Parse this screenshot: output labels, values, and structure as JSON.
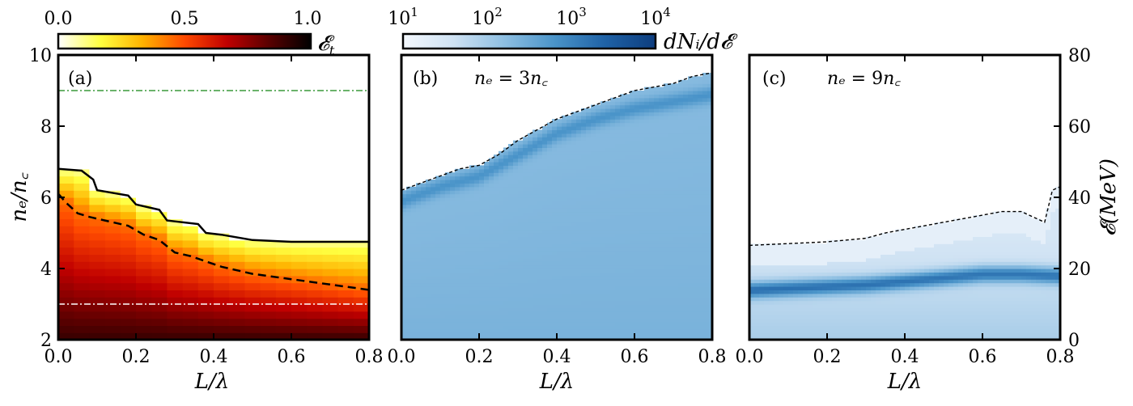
{
  "colorbars": {
    "energy_fraction": {
      "label": "𝓔",
      "label_sub": "t",
      "ticks": [
        "0.0",
        "0.5",
        "1.0"
      ],
      "range": [
        0,
        1
      ],
      "colors": [
        "#ffffff",
        "#ffff40",
        "#ffb300",
        "#ff4a00",
        "#c00000",
        "#5a0000",
        "#000000"
      ]
    },
    "ion_spectrum": {
      "label": "dNᵢ/d𝓔",
      "ticks": [
        {
          "base": "10",
          "exp": "1"
        },
        {
          "base": "10",
          "exp": "2"
        },
        {
          "base": "10",
          "exp": "3"
        },
        {
          "base": "10",
          "exp": "4"
        }
      ],
      "range": [
        10,
        10000
      ],
      "scale": "log",
      "colors": [
        "#f4f8fd",
        "#cfe2f3",
        "#8ebfe2",
        "#4a94c9",
        "#1f62a6",
        "#0d3d7e"
      ]
    }
  },
  "chart_data": [
    {
      "type": "heatmap",
      "panel": "(a)",
      "xlabel": "L/λ",
      "ylabel": "nₑ/n꜀",
      "xlim": [
        0.0,
        0.8
      ],
      "ylim": [
        2,
        10
      ],
      "x_ticks": [
        "0.0",
        "0.2",
        "0.4",
        "0.6",
        "0.8"
      ],
      "y_ticks": [
        "2",
        "4",
        "6",
        "8",
        "10"
      ],
      "color_quantity": "𝓔t",
      "series": [
        {
          "style": "solid",
          "x": [
            0.0,
            0.06,
            0.09,
            0.1,
            0.18,
            0.2,
            0.26,
            0.28,
            0.36,
            0.38,
            0.42,
            0.5,
            0.6,
            0.7,
            0.8
          ],
          "y": [
            6.8,
            6.75,
            6.5,
            6.2,
            6.05,
            5.8,
            5.65,
            5.35,
            5.25,
            5.0,
            4.95,
            4.8,
            4.75,
            4.75,
            4.75
          ]
        },
        {
          "style": "dashed",
          "x": [
            0.0,
            0.02,
            0.05,
            0.08,
            0.12,
            0.18,
            0.22,
            0.26,
            0.3,
            0.34,
            0.38,
            0.42,
            0.5,
            0.6,
            0.7,
            0.8
          ],
          "y": [
            6.1,
            5.85,
            5.55,
            5.45,
            5.35,
            5.2,
            4.95,
            4.8,
            4.45,
            4.35,
            4.2,
            4.05,
            3.85,
            3.7,
            3.55,
            3.4
          ]
        },
        {
          "style": "dash-dot-green",
          "x": [
            0.0,
            0.8
          ],
          "y": [
            9,
            9
          ]
        },
        {
          "style": "dash-dot-white",
          "x": [
            0.0,
            0.8
          ],
          "y": [
            3,
            3
          ]
        }
      ]
    },
    {
      "type": "heatmap",
      "panel": "(b)",
      "annotation": {
        "lhs": "nₑ",
        "eq": " = 3",
        "rhs": "n꜀"
      },
      "xlabel": "L/λ",
      "xlim": [
        0.0,
        0.8
      ],
      "ylim": [
        0,
        80
      ],
      "x_ticks": [
        "0.0",
        "0.2",
        "0.4",
        "0.6",
        "0.8"
      ],
      "color_quantity": "dNᵢ/d𝓔",
      "series": [
        {
          "style": "max-energy-cutoff",
          "x": [
            0.0,
            0.05,
            0.1,
            0.15,
            0.2,
            0.25,
            0.3,
            0.35,
            0.4,
            0.45,
            0.5,
            0.55,
            0.6,
            0.65,
            0.7,
            0.75,
            0.8
          ],
          "y": [
            42,
            44,
            46,
            48,
            49,
            52,
            56,
            59,
            62,
            64,
            66,
            68,
            70,
            71,
            72,
            74,
            75
          ]
        },
        {
          "style": "peak-ridge",
          "x": [
            0.0,
            0.1,
            0.2,
            0.3,
            0.4,
            0.5,
            0.6,
            0.7,
            0.8
          ],
          "y": [
            39,
            43,
            46,
            52,
            58,
            62,
            65,
            67,
            69
          ]
        }
      ]
    },
    {
      "type": "heatmap",
      "panel": "(c)",
      "annotation": {
        "lhs": "nₑ",
        "eq": " = 9",
        "rhs": "n꜀"
      },
      "xlabel": "L/λ",
      "ylabel_right": "𝓔(MeV)",
      "xlim": [
        0.0,
        0.8
      ],
      "ylim": [
        0,
        80
      ],
      "x_ticks": [
        "0.0",
        "0.2",
        "0.4",
        "0.6",
        "0.8"
      ],
      "y_ticks_right": [
        "0",
        "20",
        "40",
        "60",
        "80"
      ],
      "color_quantity": "dNᵢ/d𝓔",
      "series": [
        {
          "style": "max-energy-cutoff",
          "x": [
            0.0,
            0.1,
            0.2,
            0.3,
            0.35,
            0.4,
            0.5,
            0.6,
            0.65,
            0.7,
            0.72,
            0.74,
            0.76,
            0.78,
            0.8
          ],
          "y": [
            26.5,
            27,
            27.5,
            28.5,
            30,
            31,
            33,
            35,
            36,
            36,
            35,
            34,
            33,
            42,
            43
          ]
        },
        {
          "style": "peak-ridge",
          "x": [
            0.0,
            0.1,
            0.2,
            0.3,
            0.4,
            0.5,
            0.6,
            0.7,
            0.8
          ],
          "y": [
            14,
            14.5,
            15,
            15.5,
            16.5,
            17.5,
            18.5,
            18.5,
            18
          ]
        }
      ]
    }
  ]
}
